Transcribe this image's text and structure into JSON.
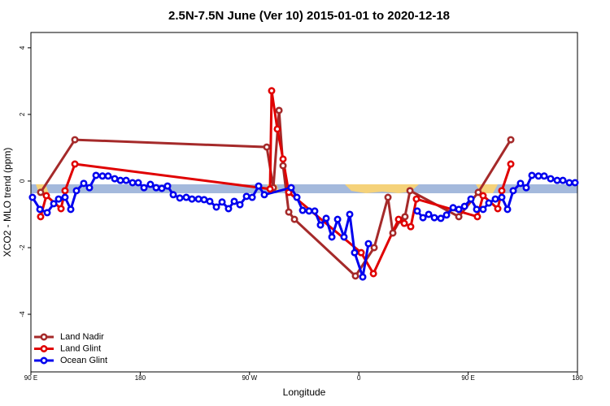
{
  "chart_data": {
    "type": "line",
    "title": "2.5N-7.5N June (Ver 10)   2015-01-01 to 2020-12-18",
    "x_label": "Longitude",
    "y_label": "XCO2 - MLO trend (ppm)",
    "xlim": [
      90,
      540
    ],
    "xticks": [
      {
        "value": 90,
        "label": "90 E"
      },
      {
        "value": 180,
        "label": "180"
      },
      {
        "value": 270,
        "label": "90 W"
      },
      {
        "value": 360,
        "label": "0"
      },
      {
        "value": 450,
        "label": "90 E"
      },
      {
        "value": 540,
        "label": "180"
      }
    ],
    "ylim": [
      -5.73,
      4.46
    ],
    "yticks": [
      4,
      2,
      0,
      -2,
      -4
    ],
    "legend": "bottom-left",
    "series": [
      {
        "name": "Land Nadir",
        "color": "#a52a2a",
        "x": [
          98.0,
          126.2,
          284.2,
          289.6,
          294.3,
          297.6,
          302.3,
          307.0,
          357.2,
          372.6,
          384.0,
          388.0,
          394.0,
          398.0,
          402.1,
          442.3,
          458.3,
          485.1
        ],
        "values": [
          -0.34,
          1.24,
          1.02,
          -0.2,
          2.12,
          0.46,
          -0.93,
          -1.15,
          -2.85,
          -2.0,
          -0.49,
          -1.56,
          -1.17,
          -1.07,
          -0.29,
          -1.07,
          -0.34,
          1.24
        ]
      },
      {
        "name": "Land Glint",
        "color": "#e00000",
        "x": [
          98.0,
          102.7,
          114.8,
          118.1,
          126.2,
          286.9,
          288.2,
          292.9,
          297.6,
          302.3,
          361.9,
          372.0,
          392.7,
          397.4,
          402.7,
          407.4,
          457.6,
          462.3,
          474.4,
          477.7,
          485.1
        ],
        "values": [
          -1.07,
          -0.44,
          -0.83,
          -0.29,
          0.51,
          -0.24,
          2.71,
          1.56,
          0.66,
          -0.34,
          -2.15,
          -2.78,
          -1.15,
          -1.27,
          -1.37,
          -0.54,
          -1.07,
          -0.44,
          -0.83,
          -0.29,
          0.51
        ]
      },
      {
        "name": "Ocean Glint",
        "color": "#0000ee",
        "x": [
          91.3,
          97.4,
          103.4,
          108.8,
          112.8,
          118.1,
          122.8,
          127.5,
          133.5,
          138.2,
          143.6,
          148.9,
          153.6,
          159.0,
          163.7,
          168.4,
          173.7,
          178.4,
          183.1,
          188.4,
          193.1,
          197.8,
          202.5,
          207.2,
          212.6,
          217.9,
          222.6,
          228.0,
          232.6,
          237.3,
          242.7,
          247.4,
          252.7,
          257.4,
          262.1,
          267.5,
          272.2,
          277.5,
          282.2,
          304.3,
          309.0,
          313.7,
          319.0,
          323.7,
          328.4,
          333.1,
          337.8,
          342.5,
          347.8,
          352.5,
          356.5,
          363.2,
          367.9,
          390.0,
          408.1,
          412.8,
          417.5,
          422.2,
          427.5,
          432.2,
          437.6,
          442.3,
          447.0,
          452.3,
          457.0,
          462.3,
          467.0,
          472.4,
          477.7,
          482.4,
          487.1,
          493.1,
          497.8,
          502.5,
          507.9,
          512.6,
          517.9,
          523.3,
          528.0,
          533.3,
          538.0
        ],
        "values": [
          -0.49,
          -0.85,
          -0.95,
          -0.68,
          -0.54,
          -0.49,
          -0.85,
          -0.29,
          -0.07,
          -0.2,
          0.17,
          0.15,
          0.15,
          0.07,
          0.02,
          0.02,
          -0.05,
          -0.05,
          -0.2,
          -0.1,
          -0.2,
          -0.22,
          -0.15,
          -0.41,
          -0.51,
          -0.49,
          -0.54,
          -0.54,
          -0.56,
          -0.61,
          -0.78,
          -0.63,
          -0.83,
          -0.61,
          -0.71,
          -0.46,
          -0.49,
          -0.15,
          -0.41,
          -0.2,
          -0.49,
          -0.88,
          -0.9,
          -0.9,
          -1.32,
          -1.12,
          -1.68,
          -1.15,
          -1.68,
          -1.0,
          -2.15,
          -2.88,
          -1.88,
          null,
          -0.9,
          -1.1,
          -1.0,
          -1.1,
          -1.12,
          -1.02,
          -0.8,
          -0.85,
          -0.76,
          -0.54,
          -0.85,
          -0.85,
          -0.66,
          -0.54,
          -0.49,
          -0.85,
          -0.29,
          -0.07,
          -0.2,
          0.17,
          0.15,
          0.15,
          0.07,
          0.02,
          0.02,
          -0.05,
          -0.05
        ]
      }
    ]
  }
}
